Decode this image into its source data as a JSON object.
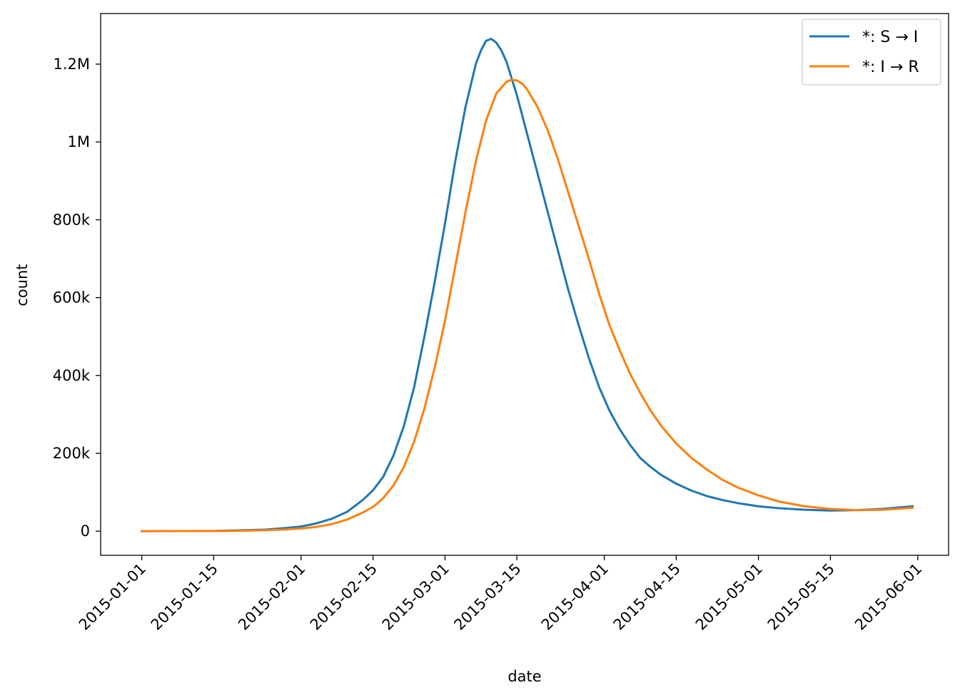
{
  "chart_data": {
    "type": "line",
    "xlabel": "date",
    "ylabel": "count",
    "xlim": [
      "2014-12-24",
      "2015-06-07"
    ],
    "ylim": [
      -62000,
      1330000
    ],
    "x_ticks": [
      {
        "value": "2015-01-01",
        "label": "2015-01-01"
      },
      {
        "value": "2015-01-15",
        "label": "2015-01-15"
      },
      {
        "value": "2015-02-01",
        "label": "2015-02-01"
      },
      {
        "value": "2015-02-15",
        "label": "2015-02-15"
      },
      {
        "value": "2015-03-01",
        "label": "2015-03-01"
      },
      {
        "value": "2015-03-15",
        "label": "2015-03-15"
      },
      {
        "value": "2015-04-01",
        "label": "2015-04-01"
      },
      {
        "value": "2015-04-15",
        "label": "2015-04-15"
      },
      {
        "value": "2015-05-01",
        "label": "2015-05-01"
      },
      {
        "value": "2015-05-15",
        "label": "2015-05-15"
      },
      {
        "value": "2015-06-01",
        "label": "2015-06-01"
      }
    ],
    "y_ticks": [
      {
        "value": 0,
        "label": "0"
      },
      {
        "value": 200000,
        "label": "200k"
      },
      {
        "value": 400000,
        "label": "400k"
      },
      {
        "value": 600000,
        "label": "600k"
      },
      {
        "value": 800000,
        "label": "800k"
      },
      {
        "value": 1000000,
        "label": "1M"
      },
      {
        "value": 1200000,
        "label": "1.2M"
      }
    ],
    "legend_position": "top-right",
    "grid": false,
    "series": [
      {
        "name": "*: S → I",
        "color": "#1f77b4",
        "points": [
          [
            "2015-01-01",
            0
          ],
          [
            "2015-01-15",
            500
          ],
          [
            "2015-01-20",
            2000
          ],
          [
            "2015-01-25",
            4000
          ],
          [
            "2015-01-29",
            8000
          ],
          [
            "2015-02-01",
            12000
          ],
          [
            "2015-02-04",
            20000
          ],
          [
            "2015-02-07",
            32000
          ],
          [
            "2015-02-10",
            50000
          ],
          [
            "2015-02-13",
            80000
          ],
          [
            "2015-02-15",
            105000
          ],
          [
            "2015-02-17",
            140000
          ],
          [
            "2015-02-19",
            195000
          ],
          [
            "2015-02-21",
            270000
          ],
          [
            "2015-02-23",
            370000
          ],
          [
            "2015-02-25",
            500000
          ],
          [
            "2015-02-27",
            640000
          ],
          [
            "2015-03-01",
            790000
          ],
          [
            "2015-03-03",
            950000
          ],
          [
            "2015-03-05",
            1090000
          ],
          [
            "2015-03-07",
            1200000
          ],
          [
            "2015-03-08",
            1235000
          ],
          [
            "2015-03-09",
            1260000
          ],
          [
            "2015-03-10",
            1265000
          ],
          [
            "2015-03-11",
            1255000
          ],
          [
            "2015-03-12",
            1235000
          ],
          [
            "2015-03-13",
            1205000
          ],
          [
            "2015-03-15",
            1120000
          ],
          [
            "2015-03-17",
            1020000
          ],
          [
            "2015-03-19",
            920000
          ],
          [
            "2015-03-21",
            820000
          ],
          [
            "2015-03-23",
            720000
          ],
          [
            "2015-03-25",
            620000
          ],
          [
            "2015-03-27",
            530000
          ],
          [
            "2015-03-29",
            445000
          ],
          [
            "2015-03-31",
            370000
          ],
          [
            "2015-04-02",
            310000
          ],
          [
            "2015-04-04",
            262000
          ],
          [
            "2015-04-06",
            222000
          ],
          [
            "2015-04-08",
            188000
          ],
          [
            "2015-04-10",
            165000
          ],
          [
            "2015-04-12",
            145000
          ],
          [
            "2015-04-15",
            122000
          ],
          [
            "2015-04-18",
            104000
          ],
          [
            "2015-04-21",
            90000
          ],
          [
            "2015-04-24",
            80000
          ],
          [
            "2015-04-27",
            72000
          ],
          [
            "2015-05-01",
            64000
          ],
          [
            "2015-05-05",
            59000
          ],
          [
            "2015-05-10",
            55000
          ],
          [
            "2015-05-15",
            53000
          ],
          [
            "2015-05-20",
            54000
          ],
          [
            "2015-05-25",
            57000
          ],
          [
            "2015-05-31",
            64000
          ]
        ]
      },
      {
        "name": "*: I → R",
        "color": "#ff7f0e",
        "points": [
          [
            "2015-01-01",
            0
          ],
          [
            "2015-01-15",
            300
          ],
          [
            "2015-01-20",
            1000
          ],
          [
            "2015-01-25",
            2500
          ],
          [
            "2015-01-29",
            4500
          ],
          [
            "2015-02-01",
            7000
          ],
          [
            "2015-02-04",
            11000
          ],
          [
            "2015-02-07",
            18000
          ],
          [
            "2015-02-10",
            30000
          ],
          [
            "2015-02-13",
            48000
          ],
          [
            "2015-02-15",
            62000
          ],
          [
            "2015-02-17",
            85000
          ],
          [
            "2015-02-19",
            118000
          ],
          [
            "2015-02-21",
            165000
          ],
          [
            "2015-02-23",
            230000
          ],
          [
            "2015-02-25",
            315000
          ],
          [
            "2015-02-27",
            420000
          ],
          [
            "2015-03-01",
            540000
          ],
          [
            "2015-03-03",
            680000
          ],
          [
            "2015-03-05",
            820000
          ],
          [
            "2015-03-07",
            950000
          ],
          [
            "2015-03-09",
            1055000
          ],
          [
            "2015-03-11",
            1125000
          ],
          [
            "2015-03-13",
            1155000
          ],
          [
            "2015-03-14",
            1160000
          ],
          [
            "2015-03-15",
            1158000
          ],
          [
            "2015-03-16",
            1150000
          ],
          [
            "2015-03-17",
            1135000
          ],
          [
            "2015-03-19",
            1090000
          ],
          [
            "2015-03-21",
            1030000
          ],
          [
            "2015-03-23",
            955000
          ],
          [
            "2015-03-25",
            870000
          ],
          [
            "2015-03-27",
            785000
          ],
          [
            "2015-03-29",
            700000
          ],
          [
            "2015-03-31",
            610000
          ],
          [
            "2015-04-02",
            530000
          ],
          [
            "2015-04-04",
            465000
          ],
          [
            "2015-04-06",
            405000
          ],
          [
            "2015-04-08",
            355000
          ],
          [
            "2015-04-10",
            310000
          ],
          [
            "2015-04-12",
            272000
          ],
          [
            "2015-04-15",
            225000
          ],
          [
            "2015-04-18",
            188000
          ],
          [
            "2015-04-21",
            158000
          ],
          [
            "2015-04-24",
            132000
          ],
          [
            "2015-04-27",
            112000
          ],
          [
            "2015-05-01",
            92000
          ],
          [
            "2015-05-05",
            76000
          ],
          [
            "2015-05-10",
            64000
          ],
          [
            "2015-05-15",
            57000
          ],
          [
            "2015-05-20",
            54000
          ],
          [
            "2015-05-25",
            55000
          ],
          [
            "2015-05-31",
            60000
          ]
        ]
      }
    ]
  }
}
